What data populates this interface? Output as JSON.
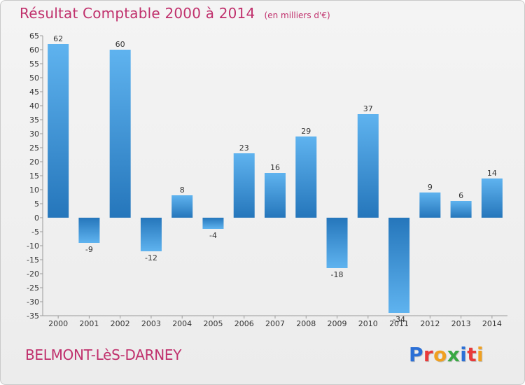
{
  "title": "Résultat Comptable 2000 à 2014",
  "subtitle": "(en milliers d'€)",
  "commune": "BELMONT-LèS-DARNEY",
  "logo": {
    "letters": [
      "P",
      "r",
      "o",
      "x",
      "i",
      "t",
      "i"
    ],
    "colors": [
      "#2b6fd6",
      "#e83a3a",
      "#f0a020",
      "#38a843",
      "#2b6fd6",
      "#e83a3a",
      "#f0a020"
    ]
  },
  "colors": {
    "title": "#c0306c",
    "bar_light": "#5fb3ef",
    "bar_dark": "#2576bb",
    "axis": "#9a9a9a",
    "text": "#333333"
  },
  "chart_data": {
    "type": "bar",
    "categories": [
      "2000",
      "2001",
      "2002",
      "2003",
      "2004",
      "2005",
      "2006",
      "2007",
      "2008",
      "2009",
      "2010",
      "2011",
      "2012",
      "2013",
      "2014"
    ],
    "values": [
      62,
      -9,
      60,
      -12,
      8,
      -4,
      23,
      16,
      29,
      -18,
      37,
      -34,
      9,
      6,
      14
    ],
    "ylim": [
      -35,
      65
    ],
    "ytick_step": 5,
    "grid": false,
    "title": "Résultat Comptable 2000 à 2014",
    "xlabel": "",
    "ylabel": ""
  }
}
